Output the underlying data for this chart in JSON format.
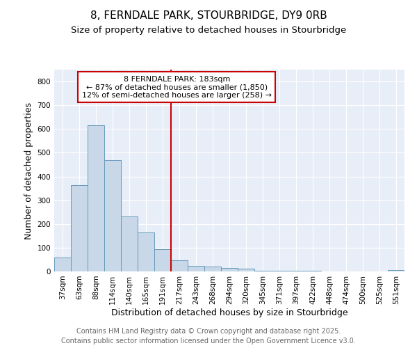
{
  "title": "8, FERNDALE PARK, STOURBRIDGE, DY9 0RB",
  "subtitle": "Size of property relative to detached houses in Stourbridge",
  "xlabel": "Distribution of detached houses by size in Stourbridge",
  "ylabel": "Number of detached properties",
  "categories": [
    "37sqm",
    "63sqm",
    "88sqm",
    "114sqm",
    "140sqm",
    "165sqm",
    "191sqm",
    "217sqm",
    "243sqm",
    "268sqm",
    "294sqm",
    "320sqm",
    "345sqm",
    "371sqm",
    "397sqm",
    "422sqm",
    "448sqm",
    "474sqm",
    "500sqm",
    "525sqm",
    "551sqm"
  ],
  "values": [
    60,
    363,
    615,
    470,
    232,
    165,
    95,
    47,
    22,
    20,
    15,
    12,
    4,
    2,
    2,
    2,
    1,
    1,
    1,
    1,
    5
  ],
  "bar_color": "#c8d8e8",
  "bar_edge_color": "#6699bb",
  "vline_color": "#cc0000",
  "annotation_title": "8 FERNDALE PARK: 183sqm",
  "annotation_line1": "← 87% of detached houses are smaller (1,850)",
  "annotation_line2": "12% of semi-detached houses are larger (258) →",
  "annotation_box_color": "white",
  "annotation_box_edge": "#cc0000",
  "ylim": [
    0,
    850
  ],
  "yticks": [
    0,
    100,
    200,
    300,
    400,
    500,
    600,
    700,
    800
  ],
  "background_color": "#ffffff",
  "plot_bg_color": "#e8eef8",
  "grid_color": "#ffffff",
  "footer_line1": "Contains HM Land Registry data © Crown copyright and database right 2025.",
  "footer_line2": "Contains public sector information licensed under the Open Government Licence v3.0.",
  "title_fontsize": 11,
  "subtitle_fontsize": 9.5,
  "tick_fontsize": 7.5,
  "label_fontsize": 9,
  "ann_fontsize": 8,
  "footer_fontsize": 7
}
